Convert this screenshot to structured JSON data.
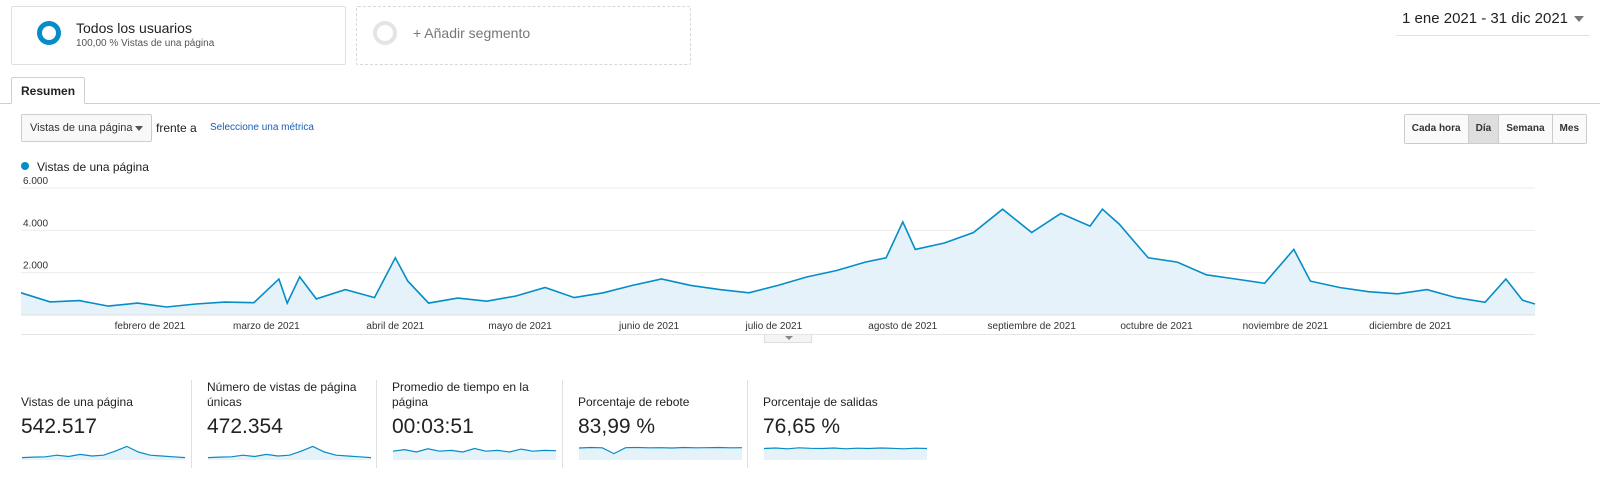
{
  "segments": {
    "primary": {
      "title": "Todos los usuarios",
      "subtitle": "100,00 % Vistas de una página"
    },
    "add_label": "+ Añadir segmento"
  },
  "date_range": "1 ene 2021 - 31 dic 2021",
  "tabs": [
    {
      "label": "Resumen",
      "active": true
    }
  ],
  "metric_select": {
    "value": "Vistas de una página",
    "vs_label": "frente a",
    "select_link": "Seleccione una métrica"
  },
  "granularity": [
    {
      "label": "Cada hora",
      "active": false
    },
    {
      "label": "Día",
      "active": true
    },
    {
      "label": "Semana",
      "active": false
    },
    {
      "label": "Mes",
      "active": false
    }
  ],
  "colors": {
    "accent": "#058dc7",
    "fill": "#e6f2f9",
    "link": "#1a5fb4"
  },
  "chart_data": {
    "type": "area",
    "title": "",
    "xlabel": "",
    "ylabel": "",
    "legend": "Vistas de una página",
    "ylim": [
      0,
      6000
    ],
    "yticks": [
      "6.000",
      "4.000",
      "2.000"
    ],
    "ytick_values": [
      6000,
      4000,
      2000
    ],
    "x_domain": [
      "2021-01-01",
      "2021-12-31"
    ],
    "month_labels": [
      {
        "label": "febrero de 2021",
        "date": "2021-02-01"
      },
      {
        "label": "marzo de 2021",
        "date": "2021-03-01"
      },
      {
        "label": "abril de 2021",
        "date": "2021-04-01"
      },
      {
        "label": "mayo de 2021",
        "date": "2021-05-01"
      },
      {
        "label": "junio de 2021",
        "date": "2021-06-01"
      },
      {
        "label": "julio de 2021",
        "date": "2021-07-01"
      },
      {
        "label": "agosto de 2021",
        "date": "2021-08-01"
      },
      {
        "label": "septiembre de 2021",
        "date": "2021-09-01"
      },
      {
        "label": "octubre de 2021",
        "date": "2021-10-01"
      },
      {
        "label": "noviembre de 2021",
        "date": "2021-11-01"
      },
      {
        "label": "diciembre de 2021",
        "date": "2021-12-01"
      }
    ],
    "series": [
      {
        "name": "Vistas de una página",
        "points": [
          [
            "2021-01-01",
            1050
          ],
          [
            "2021-01-08",
            620
          ],
          [
            "2021-01-15",
            680
          ],
          [
            "2021-01-22",
            420
          ],
          [
            "2021-01-29",
            560
          ],
          [
            "2021-02-05",
            380
          ],
          [
            "2021-02-12",
            520
          ],
          [
            "2021-02-19",
            610
          ],
          [
            "2021-02-26",
            580
          ],
          [
            "2021-03-04",
            1700
          ],
          [
            "2021-03-06",
            560
          ],
          [
            "2021-03-09",
            1800
          ],
          [
            "2021-03-13",
            760
          ],
          [
            "2021-03-20",
            1200
          ],
          [
            "2021-03-27",
            820
          ],
          [
            "2021-04-01",
            2700
          ],
          [
            "2021-04-04",
            1600
          ],
          [
            "2021-04-09",
            560
          ],
          [
            "2021-04-16",
            800
          ],
          [
            "2021-04-23",
            650
          ],
          [
            "2021-04-30",
            900
          ],
          [
            "2021-05-07",
            1300
          ],
          [
            "2021-05-14",
            820
          ],
          [
            "2021-05-21",
            1050
          ],
          [
            "2021-05-28",
            1400
          ],
          [
            "2021-06-04",
            1700
          ],
          [
            "2021-06-11",
            1400
          ],
          [
            "2021-06-18",
            1200
          ],
          [
            "2021-06-25",
            1050
          ],
          [
            "2021-07-02",
            1400
          ],
          [
            "2021-07-09",
            1800
          ],
          [
            "2021-07-16",
            2100
          ],
          [
            "2021-07-23",
            2500
          ],
          [
            "2021-07-28",
            2700
          ],
          [
            "2021-08-01",
            4400
          ],
          [
            "2021-08-04",
            3100
          ],
          [
            "2021-08-11",
            3400
          ],
          [
            "2021-08-18",
            3900
          ],
          [
            "2021-08-25",
            5000
          ],
          [
            "2021-09-01",
            3900
          ],
          [
            "2021-09-08",
            4800
          ],
          [
            "2021-09-15",
            4200
          ],
          [
            "2021-09-18",
            5000
          ],
          [
            "2021-09-22",
            4300
          ],
          [
            "2021-09-29",
            2700
          ],
          [
            "2021-10-06",
            2500
          ],
          [
            "2021-10-13",
            1900
          ],
          [
            "2021-10-20",
            1700
          ],
          [
            "2021-10-27",
            1500
          ],
          [
            "2021-11-03",
            3100
          ],
          [
            "2021-11-07",
            1600
          ],
          [
            "2021-11-14",
            1300
          ],
          [
            "2021-11-21",
            1100
          ],
          [
            "2021-11-28",
            1000
          ],
          [
            "2021-12-05",
            1200
          ],
          [
            "2021-12-12",
            820
          ],
          [
            "2021-12-19",
            600
          ],
          [
            "2021-12-24",
            1700
          ],
          [
            "2021-12-28",
            700
          ],
          [
            "2021-12-31",
            520
          ]
        ]
      }
    ]
  },
  "kpis": [
    {
      "label": "Vistas de una página",
      "value": "542.517",
      "spark": [
        0.15,
        0.18,
        0.2,
        0.3,
        0.22,
        0.35,
        0.25,
        0.3,
        0.55,
        0.85,
        0.5,
        0.3,
        0.25,
        0.2,
        0.15
      ]
    },
    {
      "label": "Número de vistas de página únicas",
      "value": "472.354",
      "spark": [
        0.15,
        0.18,
        0.2,
        0.3,
        0.22,
        0.35,
        0.25,
        0.3,
        0.55,
        0.85,
        0.5,
        0.3,
        0.25,
        0.2,
        0.15
      ]
    },
    {
      "label": "Promedio de tiempo en la página",
      "value": "00:03:51",
      "spark": [
        0.55,
        0.65,
        0.5,
        0.7,
        0.55,
        0.6,
        0.5,
        0.72,
        0.55,
        0.6,
        0.5,
        0.68,
        0.55,
        0.6,
        0.58
      ]
    },
    {
      "label": "Porcentaje de rebote",
      "value": "83,99 %",
      "spark": [
        0.75,
        0.78,
        0.76,
        0.4,
        0.77,
        0.78,
        0.76,
        0.77,
        0.75,
        0.78,
        0.76,
        0.77,
        0.78,
        0.76,
        0.77
      ]
    },
    {
      "label": "Porcentaje de salidas",
      "value": "76,65 %",
      "spark": [
        0.72,
        0.75,
        0.7,
        0.76,
        0.73,
        0.72,
        0.75,
        0.7,
        0.74,
        0.72,
        0.75,
        0.73,
        0.7,
        0.74,
        0.72
      ]
    }
  ]
}
